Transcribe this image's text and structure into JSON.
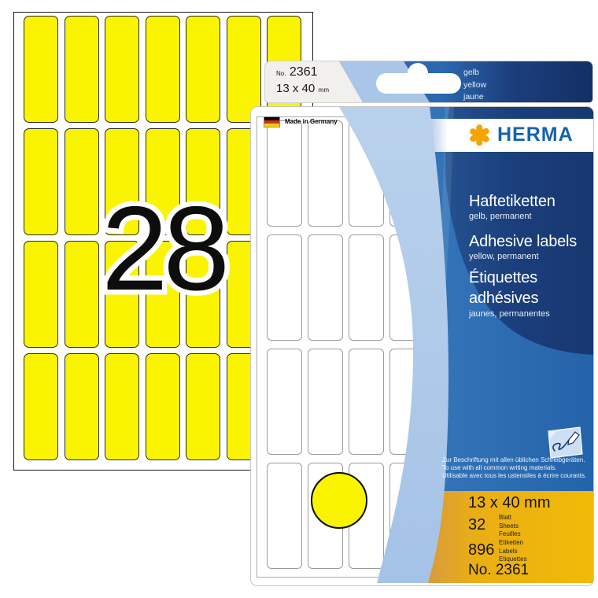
{
  "page_sheet": {
    "big_number": "28",
    "cell_count": 28
  },
  "package": {
    "tab": {
      "no_label": "No.",
      "no_value": "2361",
      "size_value": "13 x 40",
      "size_unit": "mm",
      "color_de": "gelb",
      "color_en": "yellow",
      "color_fr": "jaune"
    },
    "made_in": "Made in Germany",
    "brand": "HERMA",
    "sheet_cell_count": 28,
    "titles": {
      "de": "Haftetiketten",
      "de_sub": "gelb, permanent",
      "en": "Adhesive labels",
      "en_sub": "yellow, permanent",
      "fr_line1": "Étiquettes",
      "fr_line2": "adhésives",
      "fr_sub": "jaunes, permanentes"
    },
    "usage": {
      "de": "Zur Beschriftung mit allen üblichen Schreibgeräten.",
      "en": "To use with all common writing materials.",
      "fr": "Utilisable avec tous les ustensiles à écrire courants."
    },
    "specs": {
      "size": "13 x 40 mm",
      "sheets": "32",
      "sheets_units": [
        "Blatt",
        "Sheets",
        "Feuilles"
      ],
      "labels": "896",
      "labels_units": [
        "Etiketten",
        "Labels",
        "Etiquettes"
      ],
      "order_no": "No. 2361"
    }
  },
  "icons": {
    "flag": "german-flag-icon",
    "hole": "euro-hang-hole",
    "pen": "pen-writing-icon",
    "logo": "herma-asterisk-logo"
  },
  "colors": {
    "label_yellow": "#FAF400",
    "light_blue": "#A9C6E8",
    "medium_blue": "#2C6CB2",
    "navy_blue": "#1B3E7C",
    "herma_blue": "#1463AC",
    "herma_orange": "#F2A505",
    "gold": "#EFB70A"
  }
}
